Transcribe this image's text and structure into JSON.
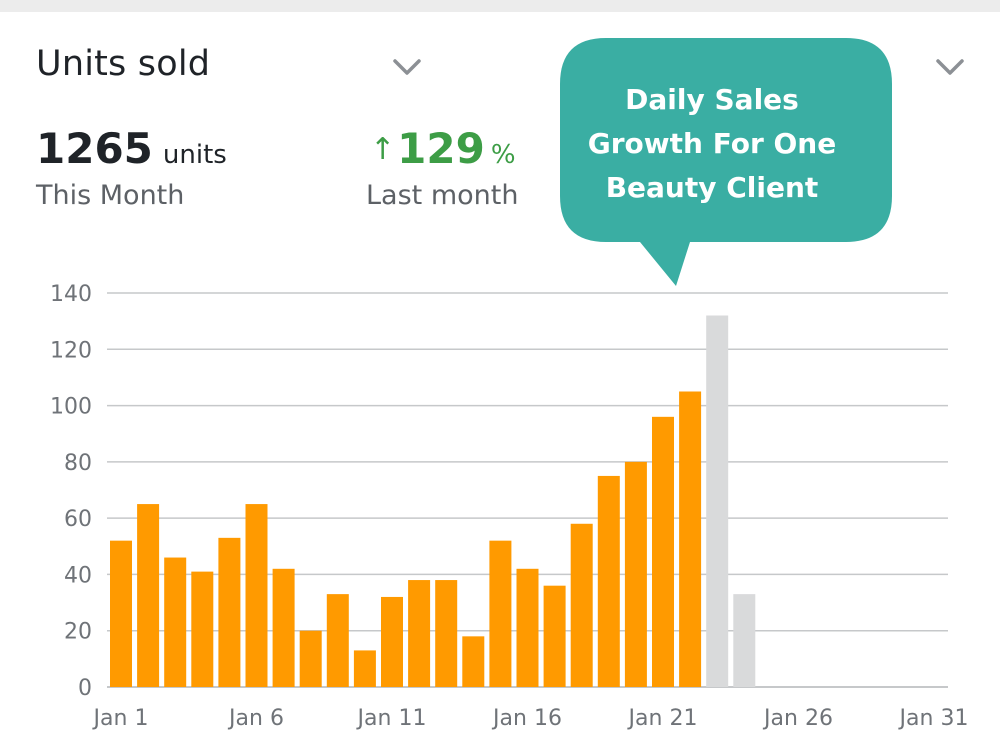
{
  "header": {
    "title": "Units sold",
    "total_value": "1265",
    "total_unit": "units",
    "total_label": "This Month",
    "growth_arrow": "↑",
    "growth_value": "129",
    "growth_unit": "%",
    "growth_label": "Last month",
    "dropdown_icon": "chevron-down-icon"
  },
  "callout": {
    "lines": [
      "Daily Sales",
      "Growth For One",
      "Beauty Client"
    ],
    "color": "#3aaea3"
  },
  "colors": {
    "bar": "#ff9a00",
    "bar_pending": "#d9dadb",
    "grid": "#c6c8ca",
    "growth": "#3d9d46"
  },
  "chart_data": {
    "type": "bar",
    "title": "Units sold",
    "xlabel": "",
    "ylabel": "",
    "ylim": [
      0,
      140
    ],
    "yticks": [
      0,
      20,
      40,
      60,
      80,
      100,
      120,
      140
    ],
    "xtick_labels": [
      "Jan 1",
      "Jan 6",
      "Jan 11",
      "Jan 16",
      "Jan 21",
      "Jan 26",
      "Jan 31"
    ],
    "xtick_days": [
      1,
      6,
      11,
      16,
      21,
      26,
      31
    ],
    "grid": true,
    "legend": "none",
    "days": [
      1,
      2,
      3,
      4,
      5,
      6,
      7,
      8,
      9,
      10,
      11,
      12,
      13,
      14,
      15,
      16,
      17,
      18,
      19,
      20,
      21,
      22,
      23,
      24
    ],
    "values": [
      52,
      65,
      46,
      41,
      53,
      65,
      42,
      20,
      33,
      13,
      32,
      38,
      38,
      18,
      52,
      42,
      36,
      58,
      75,
      80,
      96,
      105,
      132,
      33
    ],
    "highlighted": [
      true,
      true,
      true,
      true,
      true,
      true,
      true,
      true,
      true,
      true,
      true,
      true,
      true,
      true,
      true,
      true,
      true,
      true,
      true,
      true,
      true,
      true,
      false,
      false
    ]
  }
}
